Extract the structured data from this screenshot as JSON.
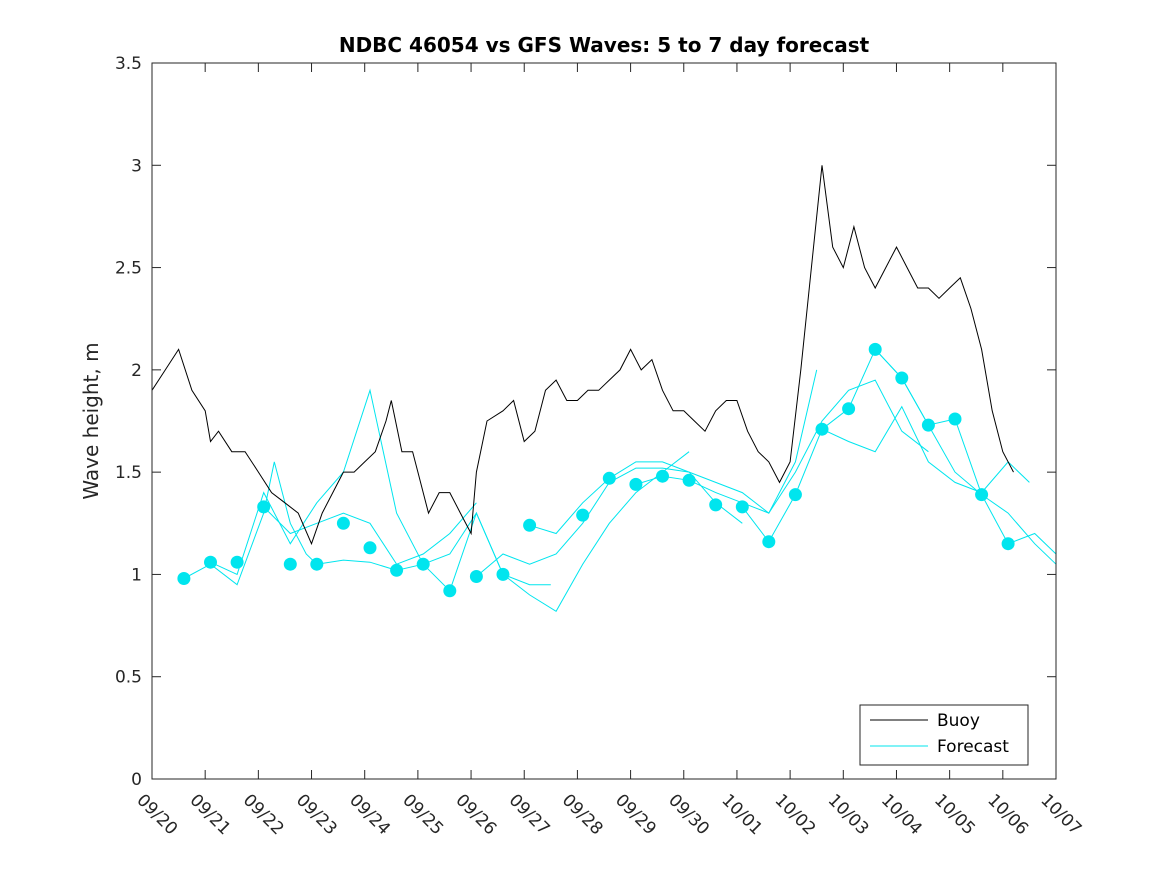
{
  "chart_data": {
    "type": "line",
    "title": "NDBC 46054 vs GFS Waves: 5 to 7 day forecast",
    "xlabel": "",
    "ylabel": "Wave height, m",
    "ylim": [
      0,
      3.5
    ],
    "xlim": [
      0,
      17
    ],
    "yticks": [
      0,
      0.5,
      1,
      1.5,
      2,
      2.5,
      3,
      3.5
    ],
    "ytick_labels": [
      "0",
      "0.5",
      "1",
      "1.5",
      "2",
      "2.5",
      "3",
      "3.5"
    ],
    "xticks": [
      0,
      1,
      2,
      3,
      4,
      5,
      6,
      7,
      8,
      9,
      10,
      11,
      12,
      13,
      14,
      15,
      16,
      17
    ],
    "xtick_labels": [
      "09/20",
      "09/21",
      "09/22",
      "09/23",
      "09/24",
      "09/25",
      "09/26",
      "09/27",
      "09/28",
      "09/29",
      "09/30",
      "10/01",
      "10/02",
      "10/03",
      "10/04",
      "10/05",
      "10/06",
      "10/07"
    ],
    "legend": {
      "position": "bottom-right",
      "entries": [
        {
          "label": "Buoy",
          "color": "#000000"
        },
        {
          "label": "Forecast",
          "color": "#00e5ee"
        }
      ]
    },
    "colors": {
      "buoy": "#000000",
      "forecast": "#00e5ee",
      "axis": "#262626"
    },
    "series": [
      {
        "name": "Buoy",
        "x": [
          0.0,
          0.25,
          0.5,
          0.75,
          1.0,
          1.1,
          1.25,
          1.5,
          1.75,
          2.0,
          2.25,
          2.5,
          2.75,
          3.0,
          3.2,
          3.4,
          3.6,
          3.8,
          4.0,
          4.2,
          4.4,
          4.5,
          4.7,
          4.9,
          5.0,
          5.2,
          5.4,
          5.6,
          5.8,
          6.0,
          6.1,
          6.3,
          6.6,
          6.8,
          7.0,
          7.2,
          7.4,
          7.6,
          7.8,
          8.0,
          8.2,
          8.4,
          8.6,
          8.8,
          9.0,
          9.2,
          9.4,
          9.6,
          9.8,
          10.0,
          10.2,
          10.4,
          10.6,
          10.8,
          11.0,
          11.2,
          11.4,
          11.6,
          11.8,
          12.0,
          12.2,
          12.4,
          12.6,
          12.8,
          13.0,
          13.2,
          13.4,
          13.6,
          13.8,
          14.0,
          14.2,
          14.4,
          14.6,
          14.8,
          15.0,
          15.2,
          15.4,
          15.6,
          15.8,
          16.0,
          16.2
        ],
        "values": [
          1.9,
          2.0,
          2.1,
          1.9,
          1.8,
          1.65,
          1.7,
          1.6,
          1.6,
          1.5,
          1.4,
          1.35,
          1.3,
          1.15,
          1.3,
          1.4,
          1.5,
          1.5,
          1.55,
          1.6,
          1.75,
          1.85,
          1.6,
          1.6,
          1.5,
          1.3,
          1.4,
          1.4,
          1.3,
          1.2,
          1.5,
          1.75,
          1.8,
          1.85,
          1.65,
          1.7,
          1.9,
          1.95,
          1.85,
          1.85,
          1.9,
          1.9,
          1.95,
          2.0,
          2.1,
          2.0,
          2.05,
          1.9,
          1.8,
          1.8,
          1.75,
          1.7,
          1.8,
          1.85,
          1.85,
          1.7,
          1.6,
          1.55,
          1.45,
          1.55,
          2.0,
          2.5,
          3.0,
          2.6,
          2.5,
          2.7,
          2.5,
          2.4,
          2.5,
          2.6,
          2.5,
          2.4,
          2.4,
          2.35,
          2.4,
          2.45,
          2.3,
          2.1,
          1.8,
          1.6,
          1.5
        ]
      },
      {
        "name": "Forecast",
        "dots": {
          "x": [
            0.6,
            1.1,
            1.6,
            2.1,
            2.6,
            3.1,
            3.6,
            4.1,
            4.6,
            5.1,
            5.6,
            6.1,
            6.6,
            7.1,
            8.1,
            8.6,
            9.1,
            9.6,
            10.1,
            10.6,
            11.1,
            11.6,
            12.1,
            12.6,
            13.1,
            13.6,
            14.1,
            14.6,
            15.1,
            15.6,
            16.1
          ],
          "values": [
            0.98,
            1.06,
            1.06,
            1.33,
            1.05,
            1.05,
            1.25,
            1.13,
            1.02,
            1.05,
            0.92,
            0.99,
            1.0,
            1.24,
            1.29,
            1.47,
            1.44,
            1.48,
            1.46,
            1.34,
            1.33,
            1.16,
            1.39,
            1.71,
            1.81,
            2.1,
            1.96,
            1.73,
            1.76,
            1.39,
            1.15
          ]
        },
        "runs": [
          {
            "x": [
              0.6,
              1.1,
              1.6,
              2.1,
              2.3,
              2.6,
              2.9,
              3.1
            ],
            "values": [
              0.98,
              1.05,
              0.95,
              1.3,
              1.55,
              1.25,
              1.1,
              1.05
            ]
          },
          {
            "x": [
              1.1,
              1.6,
              2.1,
              2.6,
              3.1,
              3.6,
              4.1,
              4.6,
              5.1
            ],
            "values": [
              1.06,
              1.0,
              1.4,
              1.15,
              1.35,
              1.5,
              1.9,
              1.3,
              1.05
            ]
          },
          {
            "x": [
              2.1,
              2.6,
              3.1,
              3.6,
              4.1,
              4.6,
              5.1,
              5.6,
              6.1
            ],
            "values": [
              1.33,
              1.2,
              1.25,
              1.3,
              1.25,
              1.05,
              1.1,
              1.2,
              1.35
            ]
          },
          {
            "x": [
              3.1,
              3.6,
              4.1,
              4.6,
              5.1,
              5.6,
              6.1,
              6.6,
              7.1,
              7.5
            ],
            "values": [
              1.05,
              1.07,
              1.06,
              1.02,
              1.05,
              1.1,
              1.3,
              1.0,
              0.95,
              0.95
            ]
          },
          {
            "x": [
              5.1,
              5.6,
              6.1,
              6.6,
              7.1,
              7.6,
              8.1,
              8.6,
              9.1,
              9.6,
              10.1
            ],
            "values": [
              1.05,
              0.92,
              1.3,
              1.0,
              0.9,
              0.82,
              1.05,
              1.25,
              1.4,
              1.5,
              1.6
            ]
          },
          {
            "x": [
              6.1,
              6.6,
              7.1,
              7.6,
              8.1,
              8.6,
              9.1,
              9.6,
              10.1,
              10.6,
              11.1
            ],
            "values": [
              0.99,
              1.1,
              1.05,
              1.1,
              1.25,
              1.45,
              1.52,
              1.52,
              1.5,
              1.35,
              1.25
            ]
          },
          {
            "x": [
              7.1,
              7.6,
              8.1,
              8.6,
              9.1,
              9.6,
              10.1,
              10.6,
              11.1,
              11.6,
              12.1,
              12.5
            ],
            "values": [
              1.24,
              1.2,
              1.35,
              1.47,
              1.55,
              1.55,
              1.5,
              1.45,
              1.4,
              1.3,
              1.55,
              2.0
            ]
          },
          {
            "x": [
              9.1,
              9.6,
              10.1,
              10.6,
              11.1,
              11.6,
              12.1,
              12.6,
              13.1,
              13.6,
              14.1,
              14.6
            ],
            "values": [
              1.44,
              1.48,
              1.46,
              1.4,
              1.35,
              1.3,
              1.5,
              1.75,
              1.9,
              1.95,
              1.7,
              1.6
            ]
          },
          {
            "x": [
              11.1,
              11.6,
              12.1,
              12.6,
              13.1,
              13.6,
              14.1,
              14.6,
              15.1,
              15.6,
              16.1,
              16.5
            ],
            "values": [
              1.33,
              1.16,
              1.39,
              1.71,
              1.65,
              1.6,
              1.82,
              1.55,
              1.45,
              1.4,
              1.55,
              1.45
            ]
          },
          {
            "x": [
              12.6,
              13.1,
              13.6,
              14.1,
              14.6,
              15.1,
              15.6,
              16.1,
              16.6,
              17.0
            ],
            "values": [
              1.71,
              1.81,
              2.1,
              1.96,
              1.73,
              1.5,
              1.39,
              1.3,
              1.15,
              1.05
            ]
          },
          {
            "x": [
              13.6,
              14.1,
              14.6,
              15.1,
              15.6,
              16.1,
              16.6,
              17.0
            ],
            "values": [
              2.1,
              1.96,
              1.73,
              1.76,
              1.39,
              1.15,
              1.2,
              1.1
            ]
          }
        ]
      }
    ]
  }
}
